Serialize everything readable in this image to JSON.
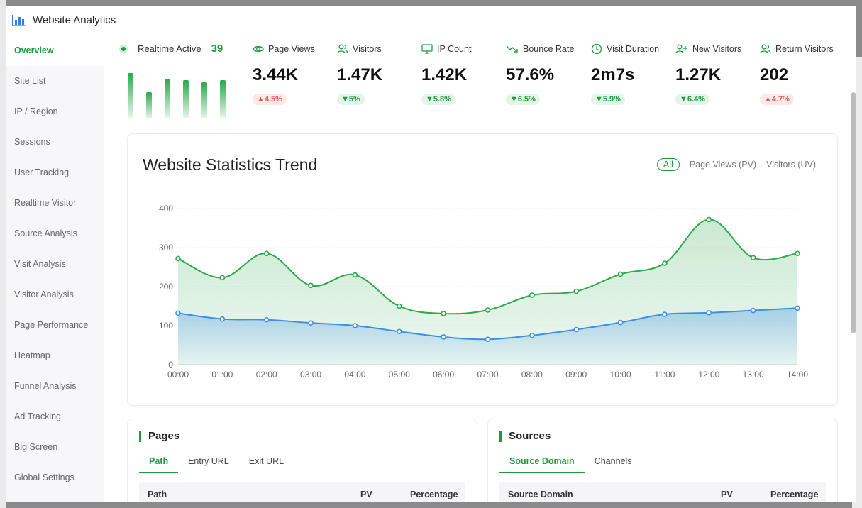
{
  "window": {
    "title": "Website Analytics",
    "icon": "bar-chart-icon"
  },
  "sidebar": {
    "items": [
      {
        "label": "Overview",
        "active": true
      },
      {
        "label": "Site List"
      },
      {
        "label": "IP / Region"
      },
      {
        "label": "Sessions"
      },
      {
        "label": "User Tracking"
      },
      {
        "label": "Realtime Visitor"
      },
      {
        "label": "Source Analysis"
      },
      {
        "label": "Visit Analysis"
      },
      {
        "label": "Visitor Analysis"
      },
      {
        "label": "Page Performance"
      },
      {
        "label": "Heatmap"
      },
      {
        "label": "Funnel Analysis"
      },
      {
        "label": "Ad Tracking"
      },
      {
        "label": "Big Screen"
      },
      {
        "label": "Global Settings"
      }
    ]
  },
  "realtime": {
    "label": "Realtime Active",
    "value": "39"
  },
  "stats": [
    {
      "label": "Page Views",
      "icon": "eye-icon",
      "value": "3.44K",
      "change": "▲4.5%",
      "direction": "up"
    },
    {
      "label": "Visitors",
      "icon": "users-icon",
      "value": "1.47K",
      "change": "▼5%",
      "direction": "down"
    },
    {
      "label": "IP Count",
      "icon": "monitor-icon",
      "value": "1.42K",
      "change": "▼5.8%",
      "direction": "down"
    },
    {
      "label": "Bounce Rate",
      "icon": "trend-down-icon",
      "value": "57.6%",
      "change": "▼6.5%",
      "direction": "down"
    },
    {
      "label": "Visit Duration",
      "icon": "clock-icon",
      "value": "2m7s",
      "change": "▼5.9%",
      "direction": "down"
    },
    {
      "label": "New Visitors",
      "icon": "user-plus-icon",
      "value": "1.27K",
      "change": "▼6.4%",
      "direction": "down"
    },
    {
      "label": "Return Visitors",
      "icon": "users-return-icon",
      "value": "202",
      "change": "▲4.7%",
      "direction": "up"
    }
  ],
  "trend": {
    "title": "Website Statistics Trend",
    "tabs": [
      {
        "label": "All",
        "active": true
      },
      {
        "label": "Page Views (PV)"
      },
      {
        "label": "Visitors (UV)"
      }
    ]
  },
  "chart_data": {
    "type": "area",
    "x": [
      "00:00",
      "01:00",
      "02:00",
      "03:00",
      "04:00",
      "05:00",
      "06:00",
      "07:00",
      "08:00",
      "09:00",
      "10:00",
      "11:00",
      "12:00",
      "13:00",
      "14:00"
    ],
    "series": [
      {
        "values": [
          272,
          223,
          285,
          203,
          230,
          150,
          131,
          140,
          178,
          188,
          232,
          260,
          372,
          274,
          285
        ],
        "color": "#2aa84a"
      },
      {
        "values": [
          132,
          117,
          115,
          107,
          100,
          85,
          71,
          65,
          75,
          90,
          108,
          129,
          133,
          139,
          145
        ],
        "color": "#3b8fe8"
      }
    ],
    "yticks": [
      0,
      100,
      200,
      300,
      400
    ],
    "ylim": [
      0,
      400
    ],
    "grid": true
  },
  "pages_panel": {
    "title": "Pages",
    "tabs": [
      "Path",
      "Entry URL",
      "Exit URL"
    ],
    "columns": [
      "Path",
      "PV",
      "Percentage"
    ]
  },
  "sources_panel": {
    "title": "Sources",
    "tabs": [
      "Source Domain",
      "Channels"
    ],
    "columns": [
      "Source Domain",
      "PV",
      "Percentage"
    ]
  },
  "colors": {
    "accent": "#1e9a3a",
    "pv_line": "#2aa84a",
    "uv_line": "#3b8fe8",
    "badge_up": "#e05858"
  }
}
